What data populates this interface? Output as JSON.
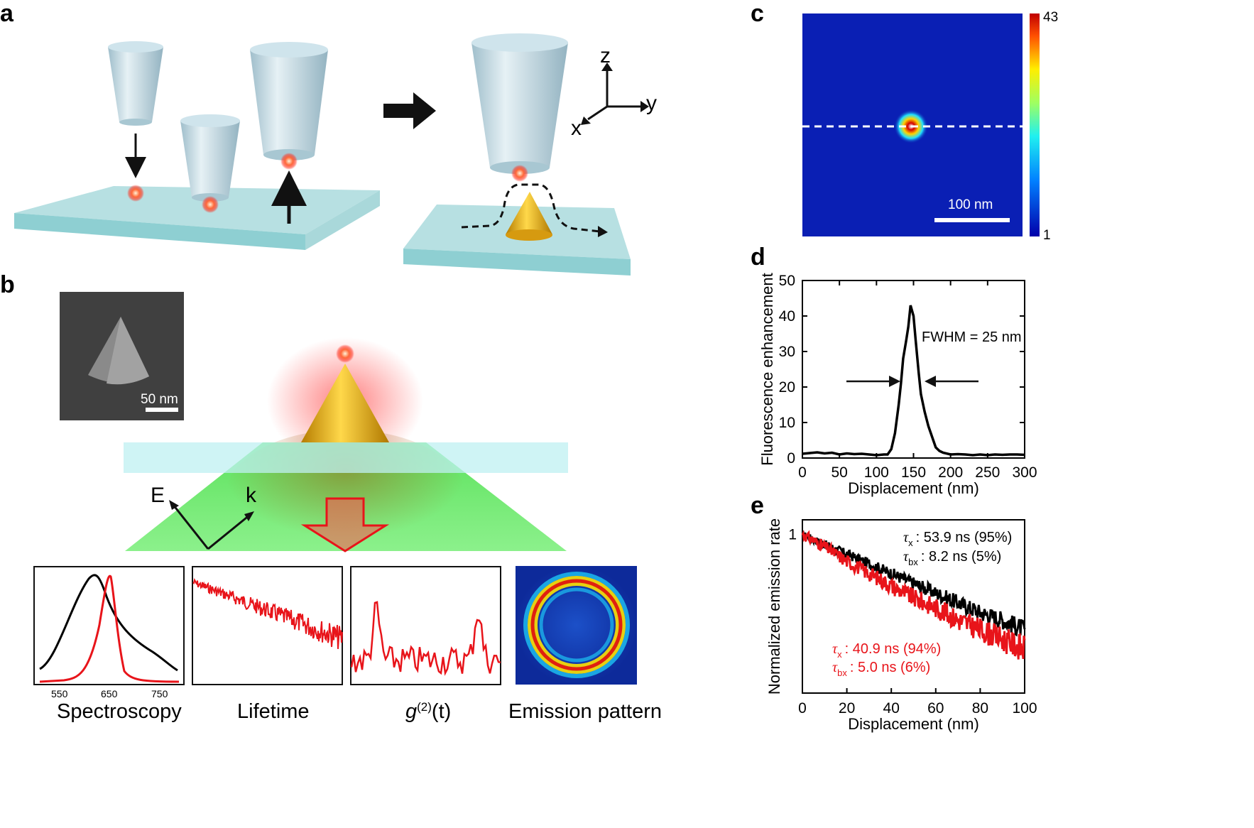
{
  "panels": {
    "a": {
      "label": "a",
      "axes": {
        "z": "z",
        "y": "y",
        "x": "x"
      }
    },
    "b": {
      "label": "b",
      "sem_scalebar": "50 nm",
      "field_labels": {
        "E": "E",
        "k": "k"
      },
      "insets": [
        {
          "caption": "Spectroscopy",
          "ticks": [
            "550",
            "650",
            "750"
          ]
        },
        {
          "caption": "Lifetime"
        },
        {
          "caption_main": "g",
          "caption_sup": "(2)",
          "caption_tail": "(t)"
        },
        {
          "caption": "Emission pattern"
        }
      ]
    },
    "c": {
      "label": "c",
      "scalebar": "100 nm",
      "colorbar_max": "43",
      "colorbar_min": "1",
      "colors": {
        "background": "#0a1fb4",
        "hot": "#d40000"
      }
    },
    "d": {
      "label": "d",
      "annotation": "FWHM = 25 nm"
    },
    "e": {
      "label": "e",
      "legend_black": [
        {
          "sym": "τ",
          "sub": "x",
          "text": ": 53.9 ns (95%)"
        },
        {
          "sym": "τ",
          "sub": "bx",
          "text": ": 8.2 ns (5%)"
        }
      ],
      "legend_red": [
        {
          "sym": "τ",
          "sub": "x",
          "text": ": 40.9 ns (94%)"
        },
        {
          "sym": "τ",
          "sub": "bx",
          "text": ": 5.0 ns (6%)"
        }
      ]
    }
  },
  "chart_data": [
    {
      "type": "line",
      "panel": "d",
      "xlabel": "Displacement (nm)",
      "ylabel": "Fluorescence enhancement",
      "xlim": [
        0,
        300
      ],
      "ylim": [
        0,
        50
      ],
      "xticks": [
        "0",
        "50",
        "100",
        "150",
        "200",
        "250",
        "300"
      ],
      "yticks": [
        "0",
        "10",
        "20",
        "30",
        "40",
        "50"
      ],
      "series": [
        {
          "color": "#000000",
          "x": [
            0,
            10,
            20,
            30,
            40,
            50,
            60,
            70,
            80,
            90,
            100,
            105,
            110,
            115,
            120,
            125,
            130,
            133,
            136,
            140,
            143,
            146,
            150,
            153,
            157,
            160,
            165,
            170,
            175,
            180,
            185,
            190,
            200,
            210,
            220,
            230,
            240,
            250,
            260,
            270,
            280,
            290,
            300
          ],
          "y": [
            1.2,
            1.4,
            1.6,
            1.3,
            1.5,
            1.0,
            1.3,
            1.1,
            1.2,
            1.0,
            0.8,
            0.9,
            1.0,
            1.0,
            2.5,
            7,
            15,
            21,
            28,
            33,
            37,
            43,
            40,
            33,
            24,
            18,
            13,
            9,
            6,
            3,
            2,
            1.5,
            1.0,
            1.1,
            1.0,
            0.8,
            1.0,
            0.8,
            1.0,
            0.9,
            1.0,
            1.0,
            0.9
          ]
        }
      ]
    },
    {
      "type": "line",
      "panel": "e",
      "xlabel": "Displacement (nm)",
      "ylabel": "Normalized emission rate",
      "xlim": [
        0,
        100
      ],
      "xticks": [
        "0",
        "20",
        "40",
        "60",
        "80",
        "100"
      ],
      "yticks": [
        "1"
      ],
      "series": [
        {
          "color": "#000000",
          "x": [
            0,
            10,
            20,
            30,
            40,
            50,
            60,
            70,
            80,
            90,
            100
          ],
          "y": [
            1.0,
            0.96,
            0.92,
            0.88,
            0.84,
            0.8,
            0.76,
            0.72,
            0.68,
            0.65,
            0.61
          ]
        },
        {
          "color": "#e8141a",
          "x": [
            0,
            10,
            20,
            30,
            40,
            50,
            60,
            70,
            80,
            90,
            100
          ],
          "y": [
            1.0,
            0.95,
            0.89,
            0.84,
            0.79,
            0.74,
            0.7,
            0.65,
            0.61,
            0.57,
            0.53
          ]
        }
      ]
    }
  ]
}
